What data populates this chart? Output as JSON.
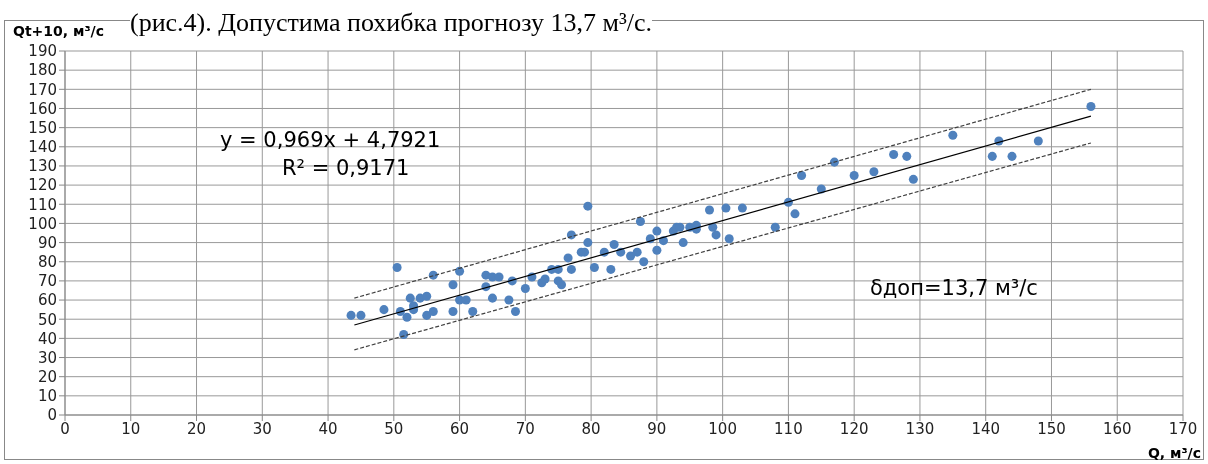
{
  "chart_data": {
    "type": "scatter",
    "xlabel": "Q, м³/с",
    "ylabel": "Qt+10, м³/с",
    "annotations": [
      "(рис.4). Допустима похибка прогнозу 13,7 м³/с.",
      "y = 0,969x + 4,7921",
      "R² = 0,9171",
      "δдоп=13,7 м³/с"
    ],
    "xlim": [
      0,
      170
    ],
    "xticks": [
      0,
      10,
      20,
      30,
      40,
      50,
      60,
      70,
      80,
      90,
      100,
      110,
      120,
      130,
      140,
      150,
      160,
      170
    ],
    "ylim": [
      0,
      190
    ],
    "yticks": [
      0,
      10,
      20,
      30,
      40,
      50,
      60,
      70,
      80,
      90,
      100,
      110,
      120,
      130,
      140,
      150,
      160,
      170,
      180,
      190
    ],
    "grid": true,
    "series": [
      {
        "color": "#4f81bd",
        "marker": "circle",
        "x": [
          43.5,
          45,
          48.5,
          50.5,
          51,
          51.5,
          52,
          52.5,
          53,
          53,
          54,
          55,
          55,
          56,
          56,
          59,
          59,
          60,
          60,
          61,
          62,
          64,
          64,
          65,
          65,
          66,
          67.5,
          68,
          68.5,
          70,
          71,
          72.5,
          73,
          74,
          75,
          75.5,
          75,
          76.5,
          77,
          77,
          78.5,
          79,
          79.5,
          79.5,
          80.5,
          82,
          83,
          83.5,
          84.5,
          86,
          87,
          87.5,
          88,
          89,
          90,
          90,
          91,
          92.5,
          93,
          93.5,
          94,
          95,
          96,
          96,
          98,
          98.5,
          99,
          100.5,
          101,
          103,
          108,
          110,
          111,
          112,
          115,
          117,
          120,
          123,
          126,
          128,
          129,
          135,
          141,
          142,
          144,
          148,
          156
        ],
        "values": [
          52,
          52,
          55,
          77,
          54,
          42,
          51,
          61,
          55,
          57,
          61,
          62,
          52,
          54,
          73,
          68,
          54,
          60,
          75,
          60,
          54,
          73,
          67,
          61,
          72,
          72,
          60,
          70,
          54,
          66,
          72,
          69,
          71,
          76,
          70,
          68,
          76,
          82,
          94,
          76,
          85,
          85,
          109,
          90,
          77,
          85,
          76,
          89,
          85,
          83,
          85,
          101,
          80,
          92,
          86,
          96,
          91,
          96,
          98,
          98,
          90,
          98,
          99,
          97,
          107,
          98,
          94,
          108,
          92,
          108,
          98,
          111,
          105,
          125,
          118,
          132,
          125,
          127,
          136,
          135,
          123,
          146,
          135,
          143,
          135,
          143,
          161
        ]
      },
      {
        "type": "line",
        "color": "#000000",
        "line_style": "solid",
        "x": [
          44,
          156
        ],
        "values": [
          47,
          156
        ]
      },
      {
        "type": "line",
        "color": "#404040",
        "line_style": "dashed",
        "x": [
          44,
          156
        ],
        "values": [
          61,
          170
        ]
      },
      {
        "type": "line",
        "color": "#404040",
        "line_style": "dashed",
        "x": [
          44,
          156
        ],
        "values": [
          34,
          142
        ]
      }
    ]
  }
}
